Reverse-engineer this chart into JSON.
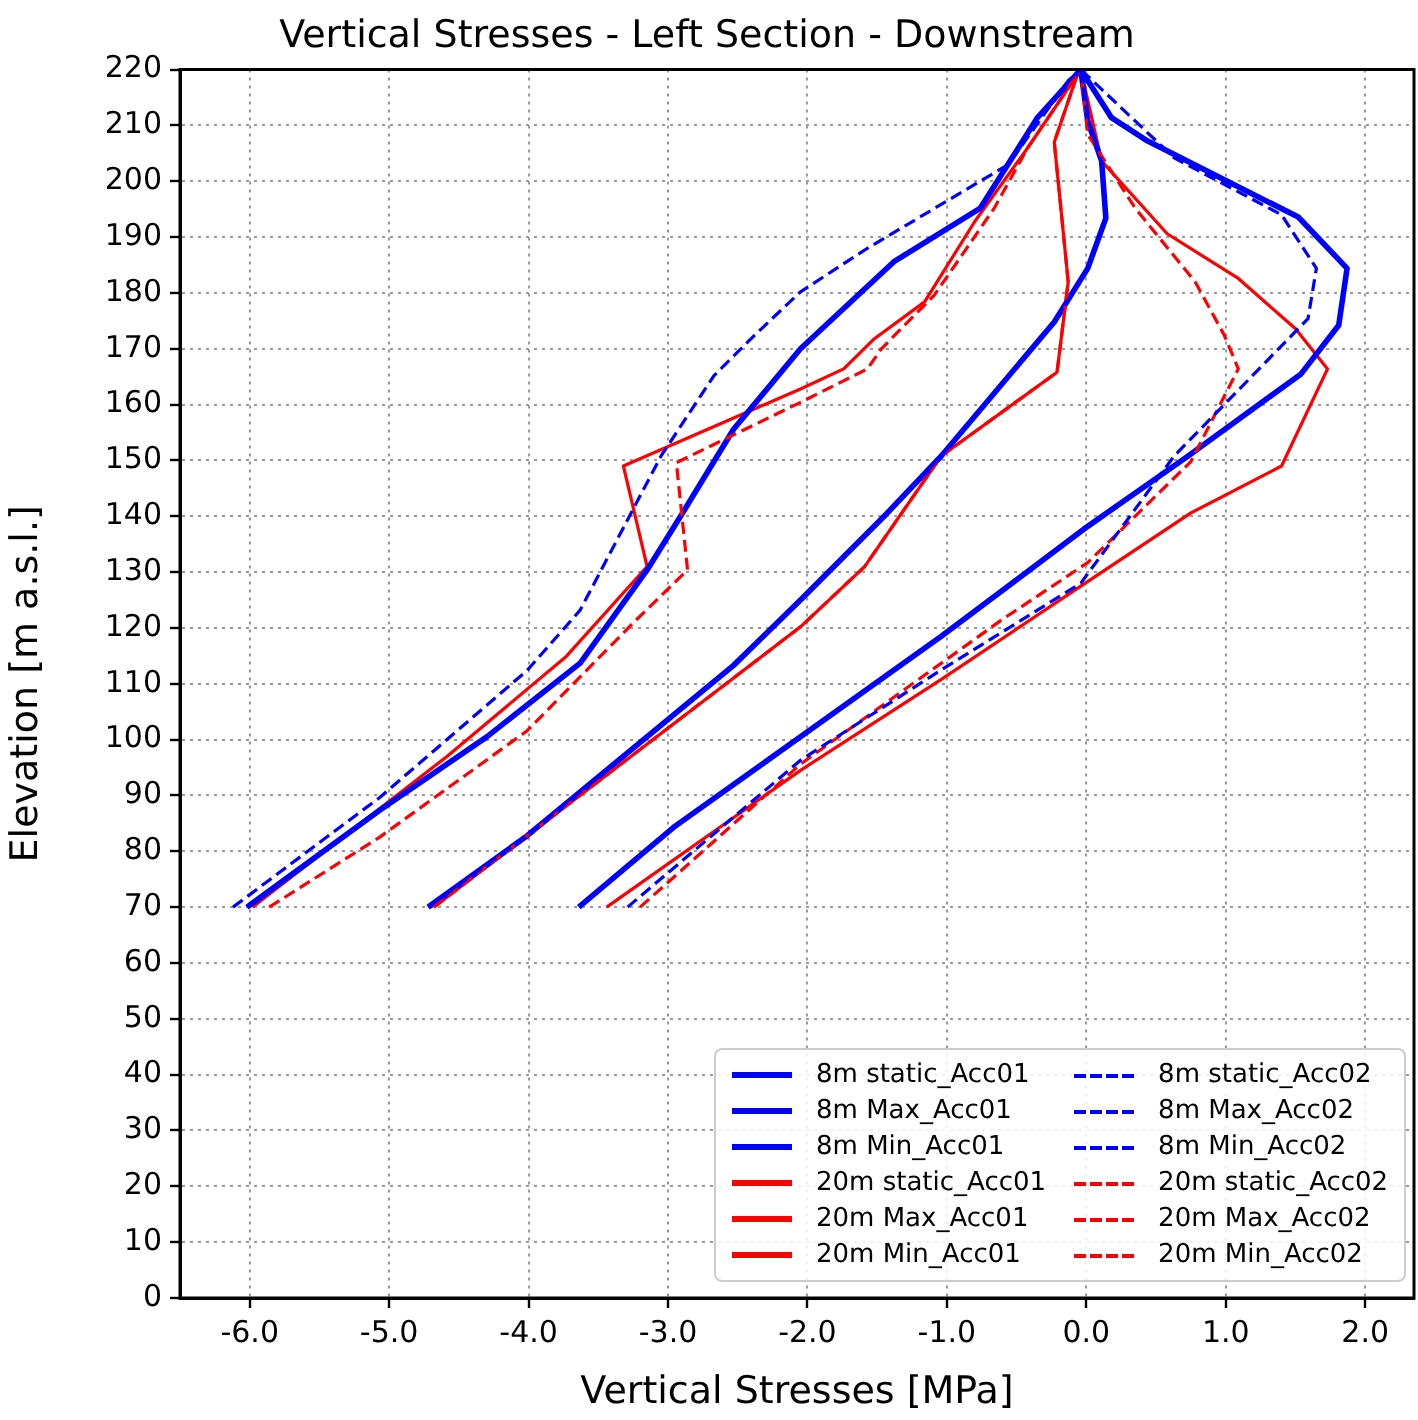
{
  "chart_data": {
    "type": "line",
    "title": "Vertical Stresses - Left Section - Downstream",
    "xlabel": "Vertical Stresses [MPa]",
    "ylabel": "Elevation [m a.s.l.]",
    "xlim": [
      -6.5,
      2.35
    ],
    "xticks": [
      {
        "value": -6,
        "label": "-6.0"
      },
      {
        "value": -5,
        "label": "-5.0"
      },
      {
        "value": -4,
        "label": "-4.0"
      },
      {
        "value": -3,
        "label": "-3.0"
      },
      {
        "value": -2,
        "label": "-2.0"
      },
      {
        "value": -1,
        "label": "-1.0"
      },
      {
        "value": 0,
        "label": "0.0"
      },
      {
        "value": 1,
        "label": "1.0"
      },
      {
        "value": 2,
        "label": "2.0"
      }
    ],
    "ylim": [
      0,
      220
    ],
    "yticks": [
      0,
      10,
      20,
      30,
      40,
      50,
      60,
      70,
      80,
      90,
      100,
      110,
      120,
      130,
      140,
      150,
      160,
      170,
      180,
      190,
      200,
      210,
      220
    ],
    "grid": true,
    "legend": "bottom right",
    "marker": "none",
    "series": [
      {
        "name": "8m static_Acc01",
        "color": "#0000ff",
        "line_style": "solid",
        "x": [
          -4.72,
          -4.01,
          -2.53,
          -2.05,
          -1.45,
          -1.04,
          -0.23,
          0.01,
          0.14,
          0.11,
          0.01,
          -0.04
        ],
        "values": [
          70,
          82.8,
          113.3,
          125,
          140,
          150.8,
          174.8,
          184.4,
          193.4,
          203.6,
          210.8,
          220
        ]
      },
      {
        "name": "8m Max_Acc01",
        "color": "#0000ff",
        "line_style": "solid",
        "x": [
          -3.64,
          -2.96,
          -2.05,
          -1.04,
          0.01,
          0.73,
          1.54,
          1.81,
          1.87,
          1.52,
          0.44,
          0.18,
          -0.04
        ],
        "values": [
          70,
          84.3,
          100.5,
          118.5,
          138.2,
          150.8,
          165.5,
          174.2,
          184.4,
          193.6,
          207.2,
          211.4,
          220
        ]
      },
      {
        "name": "8m Min_Acc01",
        "color": "#0000ff",
        "line_style": "solid",
        "x": [
          -6.02,
          -5.07,
          -4.3,
          -3.63,
          -3.15,
          -2.91,
          -2.53,
          -2.05,
          -1.38,
          -0.76,
          -0.35,
          -0.04
        ],
        "values": [
          70,
          87.3,
          100.5,
          113.7,
          130.4,
          140,
          155.6,
          170,
          185.6,
          195.2,
          211.4,
          220
        ]
      },
      {
        "name": "20m static_Acc01",
        "color": "#ff0000",
        "line_style": "solid",
        "x": [
          -4.68,
          -2.05,
          -1.59,
          -1.04,
          -0.21,
          -0.13,
          -0.23,
          -0.08,
          -0.05
        ],
        "values": [
          70,
          120.2,
          131,
          150.8,
          165.8,
          182,
          207,
          218,
          220
        ]
      },
      {
        "name": "20m Max_Acc01",
        "color": "#ff0000",
        "line_style": "solid",
        "x": [
          -3.44,
          -2.05,
          -1.04,
          -0.01,
          0.75,
          1.4,
          1.73,
          1.5,
          1.09,
          0.58,
          0.11,
          -0.04
        ],
        "values": [
          70,
          94.5,
          110.8,
          128,
          140.6,
          149,
          166.4,
          173.6,
          182.6,
          190.6,
          203.6,
          220
        ]
      },
      {
        "name": "20m Min_Acc01",
        "color": "#ff0000",
        "line_style": "solid",
        "x": [
          -5.98,
          -4.59,
          -3.73,
          -3.15,
          -3.32,
          -2.05,
          -1.74,
          -1.52,
          -1.16,
          -0.8,
          -0.42,
          -0.04
        ],
        "values": [
          70,
          96.9,
          114.9,
          131,
          149,
          162.8,
          166.4,
          171.8,
          178.4,
          192.8,
          206,
          220
        ]
      },
      {
        "name": "8m static_Acc02",
        "color": "#0000ff",
        "line_style": "dashed",
        "x": [
          -4.72,
          -4.01,
          -2.53,
          -2.05,
          -1.45,
          -1.04,
          -0.23,
          0.01,
          0.14,
          0.11,
          0.01,
          -0.04
        ],
        "values": [
          70,
          82.8,
          113.3,
          125,
          140,
          150.8,
          174.8,
          184.4,
          193.4,
          203.6,
          210.8,
          220
        ]
      },
      {
        "name": "8m Max_Acc02",
        "color": "#0000ff",
        "line_style": "dashed",
        "x": [
          -3.29,
          -2.05,
          -1.04,
          -0.04,
          0.63,
          1.59,
          1.65,
          1.4,
          0.63,
          -0.04
        ],
        "values": [
          70,
          96.3,
          112.5,
          128,
          150.8,
          175.4,
          184.4,
          194,
          204.2,
          220
        ]
      },
      {
        "name": "8m Min_Acc02",
        "color": "#0000ff",
        "line_style": "dashed",
        "x": [
          -6.12,
          -5.07,
          -4.01,
          -3.63,
          -3.05,
          -2.67,
          -2.38,
          -2.05,
          -1.57,
          -0.56,
          -0.13,
          -0.04
        ],
        "values": [
          70,
          89.6,
          112.4,
          123.2,
          150.8,
          165.2,
          172.4,
          180.2,
          188,
          203,
          218,
          220
        ]
      },
      {
        "name": "20m static_Acc02",
        "color": "#ff0000",
        "line_style": "dashed",
        "x": [
          -4.68,
          -2.05,
          -1.59,
          -1.04,
          -0.21,
          -0.13,
          -0.23,
          -0.08,
          -0.05
        ],
        "values": [
          70,
          120.2,
          131,
          150.8,
          165.8,
          182,
          207,
          218,
          220
        ]
      },
      {
        "name": "20m Max_Acc02",
        "color": "#ff0000",
        "line_style": "dashed",
        "x": [
          -3.2,
          -2.05,
          -0.61,
          0.01,
          0.75,
          1.09,
          0.99,
          0.78,
          0.35,
          0.01,
          -0.04
        ],
        "values": [
          70,
          95.6,
          121.4,
          131.7,
          149.8,
          166.4,
          172.4,
          182,
          195.2,
          208.4,
          220
        ]
      },
      {
        "name": "20m Min_Acc02",
        "color": "#ff0000",
        "line_style": "dashed",
        "x": [
          -5.86,
          -5.07,
          -4.01,
          -3.25,
          -2.86,
          -2.94,
          -2.05,
          -1.57,
          -1.47,
          -1.09,
          -0.66,
          -0.42,
          -0.04
        ],
        "values": [
          70,
          82.5,
          101.6,
          120.9,
          130.4,
          149.6,
          160.4,
          166.4,
          170,
          179.6,
          195.2,
          206,
          220
        ]
      }
    ]
  }
}
